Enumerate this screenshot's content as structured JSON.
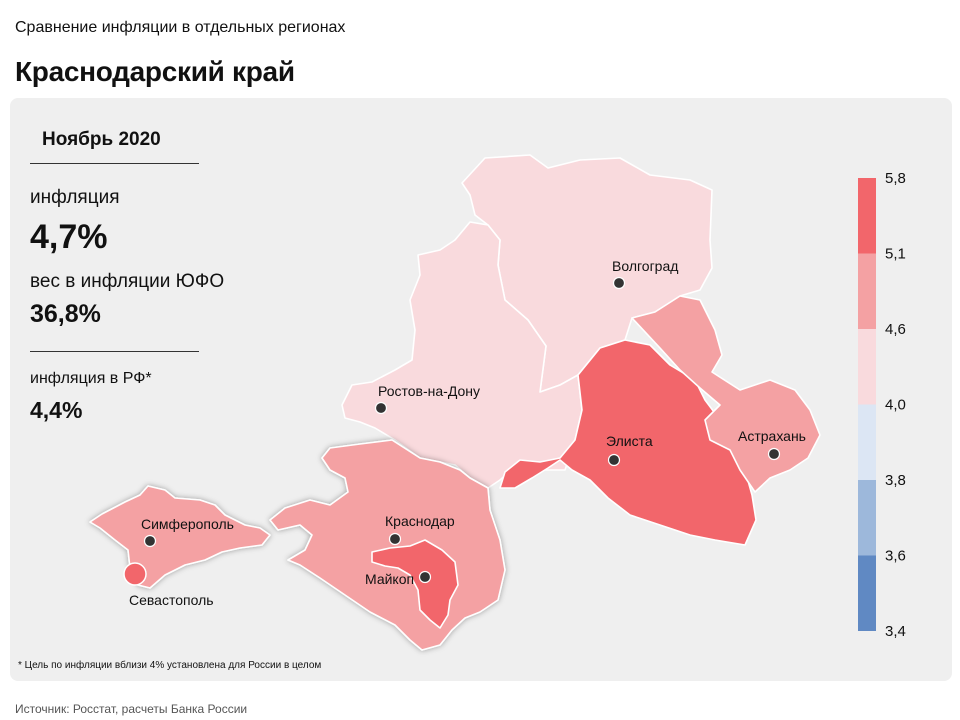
{
  "header": {
    "supertitle": "Сравнение инфляции в отдельных регионах",
    "title": "Краснодарский край"
  },
  "info": {
    "period": "Ноябрь 2020",
    "inflation_label": "инфляция",
    "inflation_value": "4,7%",
    "weight_label": "вес в инфляции ЮФО",
    "weight_value": "36,8%",
    "rf_label": "инфляция в РФ*",
    "rf_value": "4,4%"
  },
  "cities": {
    "volgograd": "Волгоград",
    "rostov": "Ростов-на-Дону",
    "elista": "Элиста",
    "astrakhan": "Астрахань",
    "simferopol": "Симферополь",
    "krasnodar": "Краснодар",
    "maykop": "Майкоп",
    "sevastopol": "Севастополь"
  },
  "legend": {
    "ticks": [
      "5,8",
      "5,1",
      "4,6",
      "4,0",
      "3,8",
      "3,6",
      "3,4"
    ],
    "bins": [
      {
        "from": 5.1,
        "to": 5.8,
        "color": "#f2666b"
      },
      {
        "from": 4.6,
        "to": 5.1,
        "color": "#f4a1a3"
      },
      {
        "from": 4.0,
        "to": 4.6,
        "color": "#f9dadd"
      },
      {
        "from": 3.8,
        "to": 4.0,
        "color": "#dce6f4"
      },
      {
        "from": 3.6,
        "to": 3.8,
        "color": "#9db8db"
      },
      {
        "from": 3.4,
        "to": 3.6,
        "color": "#6089c3"
      }
    ]
  },
  "colors": {
    "highlight_region": "#f4a1a3",
    "pale_region": "#f9dadd",
    "strong_region": "#f2666b"
  },
  "footnote": "* Цель по инфляции вблизи 4% установлена для России в целом",
  "source": "Источник: Росстат, расчеты Банка России"
}
